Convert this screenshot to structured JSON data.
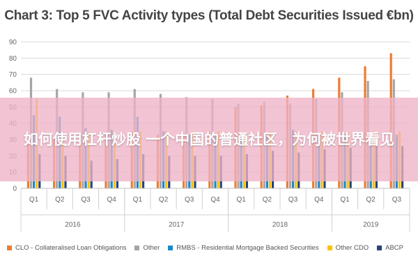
{
  "chart_data": {
    "type": "bar",
    "title": "Chart 3: Top 5 FVC Activity types (Total Debt Securities Issued €bn)",
    "ylim": [
      0,
      90
    ],
    "yticks": [
      0,
      10,
      20,
      30,
      40,
      50,
      60,
      70,
      80,
      90
    ],
    "grid": true,
    "legend_position": "bottom",
    "categories": [
      "Q1",
      "Q2",
      "Q3",
      "Q4",
      "Q1",
      "Q2",
      "Q3",
      "Q4",
      "Q1",
      "Q2",
      "Q3",
      "Q4",
      "Q1",
      "Q2",
      "Q3"
    ],
    "year_groups": [
      {
        "label": "2016",
        "count": 4
      },
      {
        "label": "2017",
        "count": 4
      },
      {
        "label": "2018",
        "count": 4
      },
      {
        "label": "2019",
        "count": 3
      }
    ],
    "series": [
      {
        "name": "CLO - Collateralised Loan Obligations",
        "color": "#ed7d31",
        "values": [
          30,
          32,
          33,
          34,
          35,
          33,
          34,
          35,
          50,
          51,
          57,
          61,
          68,
          75,
          83
        ]
      },
      {
        "name": "Other",
        "color": "#a5a5a5",
        "values": [
          68,
          61,
          59,
          59,
          61,
          58,
          56,
          55,
          52,
          53,
          52,
          55,
          59,
          66,
          67
        ]
      },
      {
        "name": "RMBS - Residential Mortgage Backed Securities",
        "color": "#1f87c8",
        "values": [
          45,
          44,
          37,
          36,
          44,
          35,
          33,
          32,
          33,
          34,
          36,
          33,
          33,
          32,
          33
        ]
      },
      {
        "name": "Other CDO",
        "color": "#ffc000",
        "values": [
          55,
          35,
          35,
          35,
          35,
          35,
          35,
          35,
          35,
          35,
          35,
          35,
          35,
          35,
          35
        ]
      },
      {
        "name": "ABCP",
        "color": "#264478",
        "values": [
          21,
          20,
          17,
          18,
          21,
          20,
          20,
          20,
          21,
          23,
          22,
          24,
          25,
          26,
          26
        ]
      }
    ]
  },
  "overlay": {
    "text": "如何使用杠杆炒股 一个中国的普通社区，为何被世界看见"
  }
}
